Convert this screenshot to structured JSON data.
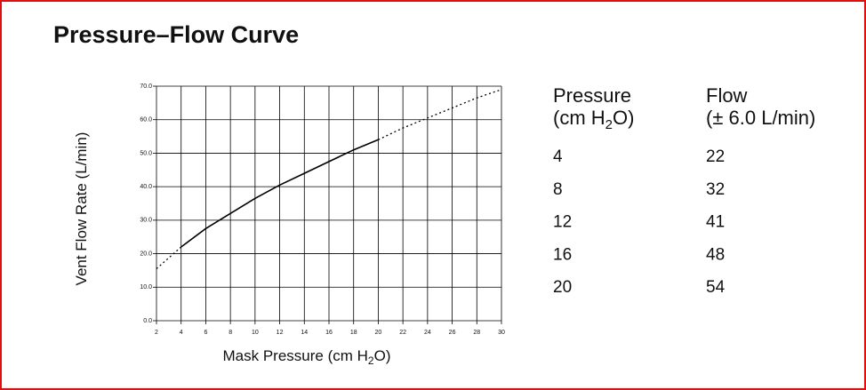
{
  "chart_data": {
    "type": "line",
    "title": "Pressure–Flow Curve",
    "xlabel": [
      "Mask Pressure (cm H",
      "2",
      "O)"
    ],
    "ylabel": "Vent Flow Rate (L/min)",
    "x": [
      2,
      4,
      6,
      8,
      10,
      12,
      14,
      16,
      18,
      20,
      22,
      24,
      26,
      28,
      30
    ],
    "series": [
      {
        "color": "#000000",
        "dash": "solid",
        "values": [
          null,
          22,
          27.5,
          32,
          36.5,
          40.5,
          44,
          47.5,
          51,
          54,
          null,
          null,
          null,
          null,
          null
        ]
      },
      {
        "color": "#000000",
        "dash": "dotted",
        "values": [
          15.5,
          22,
          null,
          null,
          null,
          null,
          null,
          null,
          null,
          54,
          57.5,
          60.5,
          63.5,
          66.5,
          69
        ]
      }
    ],
    "xlim": [
      2,
      30
    ],
    "xticks": [
      2,
      4,
      6,
      8,
      10,
      12,
      14,
      16,
      18,
      20,
      22,
      24,
      26,
      28,
      30
    ],
    "ylim": [
      0,
      70
    ],
    "yticks": [
      {
        "value": 0,
        "label": "0.0"
      },
      {
        "value": 10,
        "label": "10.0"
      },
      {
        "value": 20,
        "label": "20.0"
      },
      {
        "value": 30,
        "label": "30.0"
      },
      {
        "value": 40,
        "label": "40.0"
      },
      {
        "value": 50,
        "label": "50.0"
      },
      {
        "value": 60,
        "label": "60.0"
      },
      {
        "value": 70,
        "label": "70.0"
      }
    ],
    "grid": true
  },
  "table": {
    "headers": [
      {
        "line1": "Pressure",
        "line2": [
          "(cm H",
          "2",
          "O)"
        ]
      },
      {
        "line1": "Flow",
        "line2": [
          "(± 6.0 L/min)"
        ]
      }
    ],
    "rows": [
      [
        4,
        22
      ],
      [
        8,
        32
      ],
      [
        12,
        41
      ],
      [
        16,
        48
      ],
      [
        20,
        54
      ]
    ]
  }
}
